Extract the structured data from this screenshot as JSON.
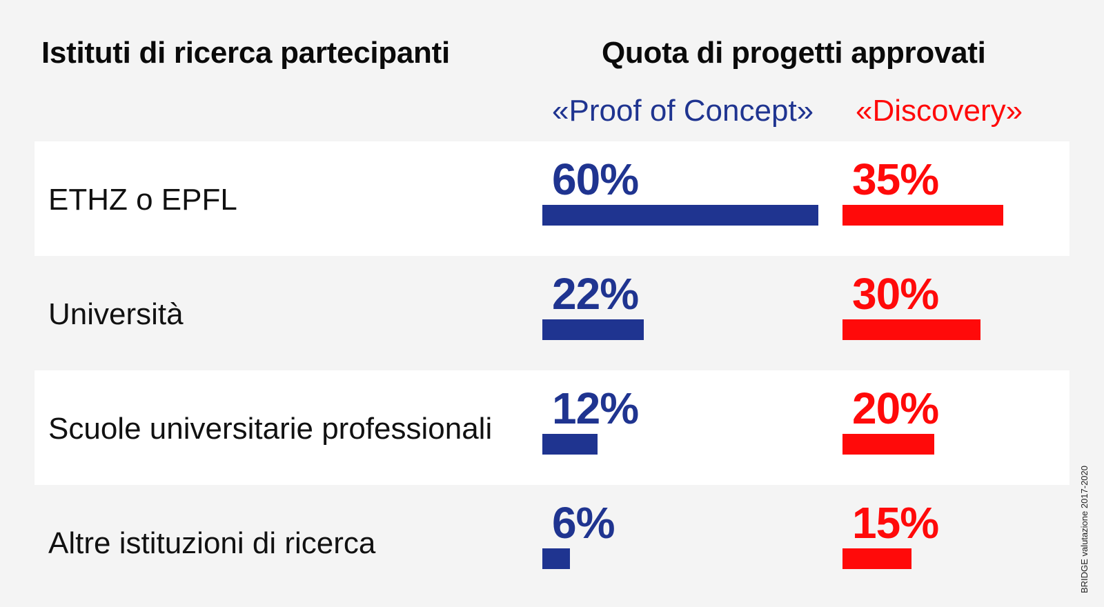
{
  "chart_data": {
    "type": "bar",
    "title_left": "Istituti di ricerca partecipanti",
    "title_right": "Quota di progetti approvati",
    "categories": [
      "ETHZ o EPFL",
      "Università",
      "Scuole universitarie professionali",
      "Altre istituzioni di ricerca"
    ],
    "series": [
      {
        "name": "«Proof of Concept»",
        "values": [
          60,
          22,
          12,
          6
        ],
        "labels": [
          "60%",
          "22%",
          "12%",
          "6%"
        ],
        "color": "#1f3490"
      },
      {
        "name": "«Discovery»",
        "values": [
          35,
          30,
          20,
          15
        ],
        "labels": [
          "35%",
          "30%",
          "20%",
          "15%"
        ],
        "color": "#ff0a0a"
      }
    ],
    "unit": "%",
    "ylim": [
      0,
      60
    ],
    "grid": false,
    "source": "BRIDGE valutazione 2017-2020"
  },
  "colors": {
    "background": "#f4f4f4",
    "row_shade": "#ffffff"
  }
}
